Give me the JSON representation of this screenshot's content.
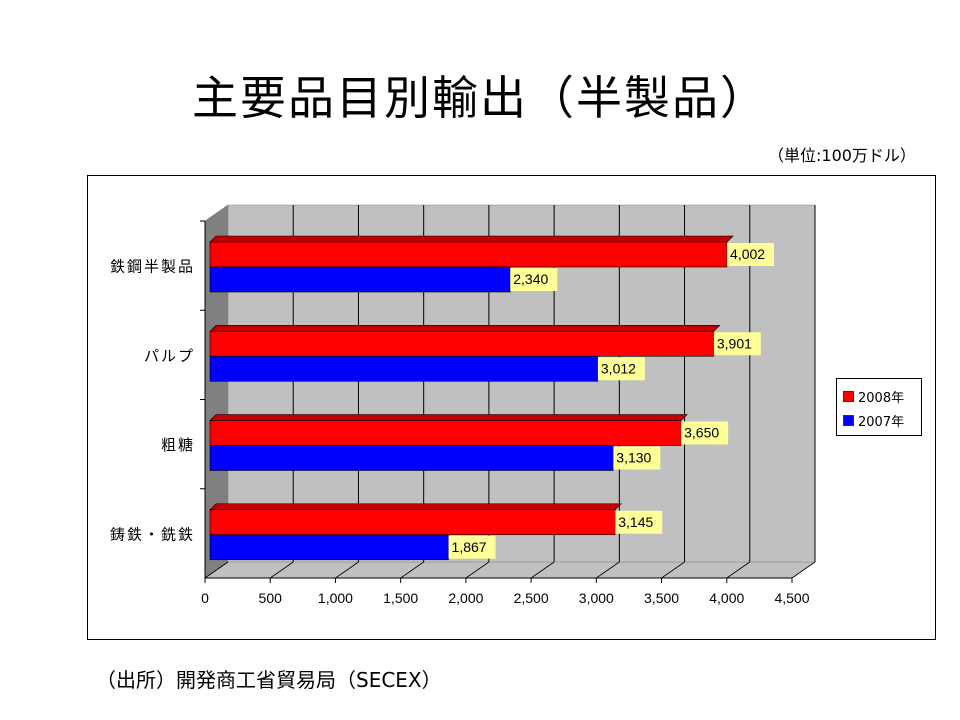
{
  "slide": {
    "title": "主要品目別輸出（半製品）",
    "unit_note": "（単位:100万ドル）",
    "source": "（出所）開発商工省貿易局（SECEX）"
  },
  "legend": {
    "items": [
      {
        "label": "2008年",
        "color": "#ff0000"
      },
      {
        "label": "2007年",
        "color": "#0000ff"
      }
    ]
  },
  "colors": {
    "series_2008": "#ff0000",
    "series_2008_top": "#c00000",
    "series_2007": "#0000ff",
    "back_wall": "#c0c0c0",
    "side_wall": "#808080",
    "label_bg": "#ffff99"
  },
  "chart_data": {
    "type": "bar",
    "orientation": "horizontal",
    "style": "3d-clustered",
    "title": "主要品目別輸出（半製品）",
    "unit": "100万ドル",
    "xlabel": "",
    "ylabel": "",
    "categories": [
      "鉄鋼半製品",
      "パルプ",
      "粗糖",
      "鋳鉄・銑鉄"
    ],
    "series": [
      {
        "name": "2008年",
        "values": [
          4002,
          3901,
          3650,
          3145
        ],
        "labels": [
          "4,002",
          "3,901",
          "3,650",
          "3,145"
        ]
      },
      {
        "name": "2007年",
        "values": [
          2340,
          3012,
          3130,
          1867
        ],
        "labels": [
          "2,340",
          "3,012",
          "3,130",
          "1,867"
        ]
      }
    ],
    "xlim": [
      0,
      4500
    ],
    "xticks": [
      "0",
      "500",
      "1,000",
      "1,500",
      "2,000",
      "2,500",
      "3,000",
      "3,500",
      "4,000",
      "4,500"
    ],
    "grid": true,
    "legend_position": "right"
  }
}
